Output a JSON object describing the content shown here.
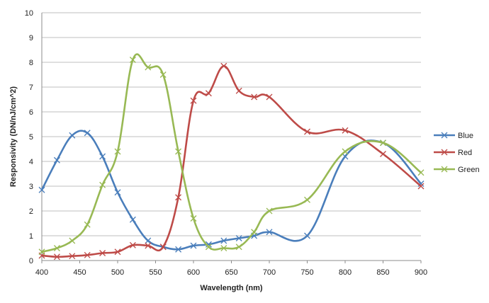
{
  "chart_data": {
    "type": "line",
    "title": "",
    "xlabel": "Wavelength (nm)",
    "ylabel": "Responsivity (DN/nJ/cm^2)",
    "xlim": [
      400,
      900
    ],
    "ylim": [
      0,
      10
    ],
    "x_ticks": [
      "400",
      "450",
      "500",
      "550",
      "600",
      "650",
      "700",
      "750",
      "800",
      "850",
      "900"
    ],
    "y_ticks": [
      "0",
      "1",
      "2",
      "3",
      "4",
      "5",
      "6",
      "7",
      "8",
      "9",
      "10"
    ],
    "grid": "horizontal",
    "legend": "right",
    "series": [
      {
        "name": "Blue",
        "color": "#4a7ebb",
        "points": [
          [
            400,
            2.85
          ],
          [
            420,
            4.05
          ],
          [
            440,
            5.05
          ],
          [
            460,
            5.15
          ],
          [
            480,
            4.2
          ],
          [
            500,
            2.75
          ],
          [
            520,
            1.65
          ],
          [
            540,
            0.8
          ],
          [
            560,
            0.55
          ],
          [
            580,
            0.45
          ],
          [
            600,
            0.6
          ],
          [
            620,
            0.65
          ],
          [
            640,
            0.8
          ],
          [
            660,
            0.9
          ],
          [
            680,
            1.0
          ],
          [
            700,
            1.15
          ],
          [
            750,
            1.0
          ],
          [
            800,
            4.2
          ],
          [
            850,
            4.75
          ],
          [
            900,
            3.1
          ]
        ]
      },
      {
        "name": "Red",
        "color": "#be4b48",
        "points": [
          [
            400,
            0.2
          ],
          [
            420,
            0.15
          ],
          [
            440,
            0.18
          ],
          [
            460,
            0.22
          ],
          [
            480,
            0.3
          ],
          [
            500,
            0.35
          ],
          [
            520,
            0.62
          ],
          [
            540,
            0.6
          ],
          [
            560,
            0.55
          ],
          [
            580,
            2.55
          ],
          [
            600,
            6.45
          ],
          [
            620,
            6.75
          ],
          [
            640,
            7.85
          ],
          [
            660,
            6.85
          ],
          [
            680,
            6.6
          ],
          [
            700,
            6.6
          ],
          [
            750,
            5.2
          ],
          [
            800,
            5.25
          ],
          [
            850,
            4.3
          ],
          [
            900,
            3.0
          ]
        ]
      },
      {
        "name": "Green",
        "color": "#98b954",
        "points": [
          [
            400,
            0.35
          ],
          [
            420,
            0.5
          ],
          [
            440,
            0.8
          ],
          [
            460,
            1.45
          ],
          [
            480,
            3.05
          ],
          [
            500,
            4.4
          ],
          [
            520,
            8.1
          ],
          [
            540,
            7.8
          ],
          [
            560,
            7.5
          ],
          [
            580,
            4.4
          ],
          [
            600,
            1.7
          ],
          [
            620,
            0.55
          ],
          [
            640,
            0.5
          ],
          [
            660,
            0.55
          ],
          [
            680,
            1.15
          ],
          [
            700,
            2.0
          ],
          [
            750,
            2.45
          ],
          [
            800,
            4.4
          ],
          [
            850,
            4.75
          ],
          [
            900,
            3.55
          ]
        ]
      }
    ]
  }
}
